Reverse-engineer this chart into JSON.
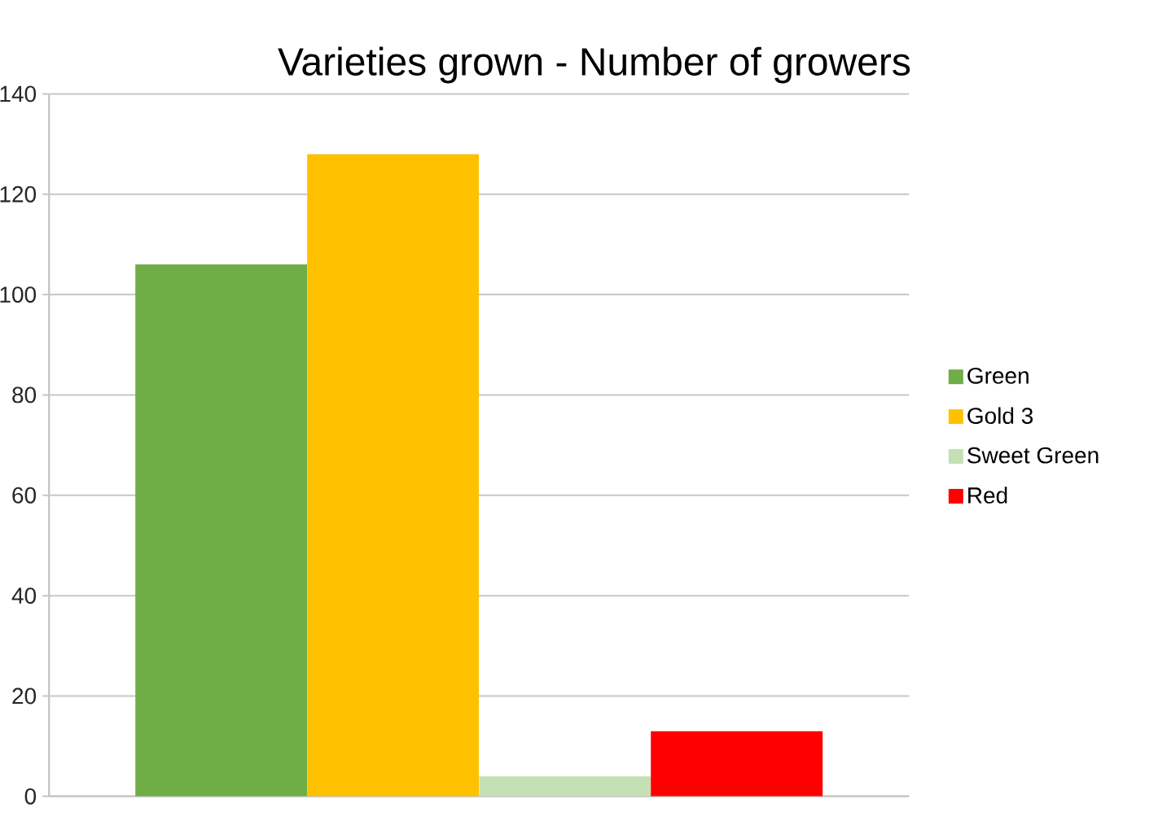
{
  "chart_data": {
    "type": "bar",
    "title": "Varieties grown - Number of growers",
    "categories": [
      null
    ],
    "series": [
      {
        "name": "Green",
        "color": "#70ad47",
        "values": [
          106
        ]
      },
      {
        "name": "Gold 3",
        "color": "#ffc000",
        "values": [
          128
        ]
      },
      {
        "name": "Sweet Green",
        "color": "#c5e0b4",
        "values": [
          4
        ]
      },
      {
        "name": "Red",
        "color": "#ff0000",
        "values": [
          13
        ]
      }
    ],
    "ylim": [
      0,
      140
    ],
    "yticks": [
      0,
      20,
      40,
      60,
      80,
      100,
      120,
      140
    ],
    "grid": "y",
    "legend": "right"
  }
}
